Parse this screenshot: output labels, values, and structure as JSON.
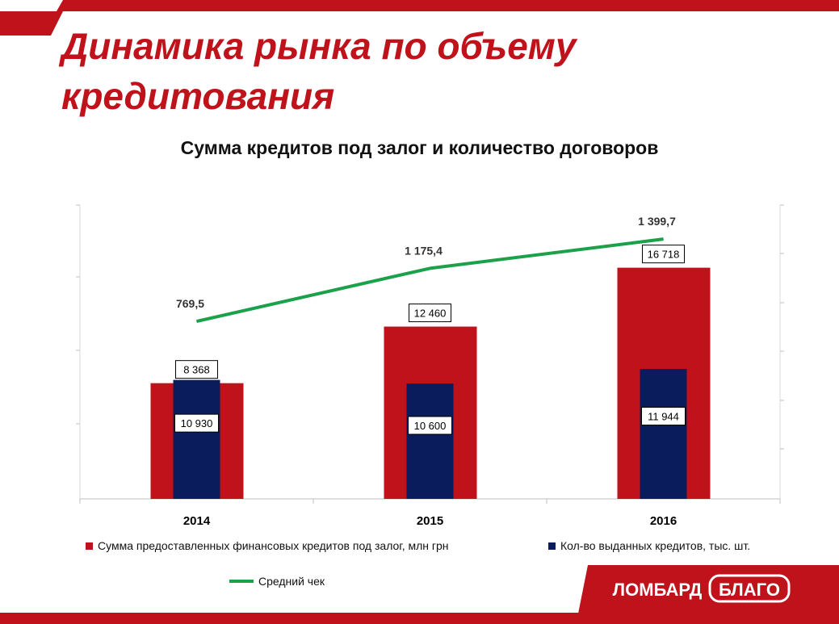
{
  "title": {
    "line1": "Динамика рынка по объему",
    "line2": "кредитования"
  },
  "colors": {
    "brand_red": "#c0121b",
    "navy": "#0b1c5c",
    "green": "#1aa14a"
  },
  "chart_data": {
    "type": "bar",
    "title": "Сумма кредитов под залог и количество договоров",
    "categories": [
      "2014",
      "2015",
      "2016"
    ],
    "series": [
      {
        "name": "Сумма предоставленных финансовых кредитов под залог, млн грн",
        "type": "bar",
        "color": "#c0121b",
        "values": [
          8368,
          12460,
          16718
        ],
        "labels": [
          "8 368",
          "12 460",
          "16 718"
        ]
      },
      {
        "name": "Кол-во выданных кредитов, тыс. шт.",
        "type": "bar",
        "color": "#0b1c5c",
        "values": [
          10930,
          10600,
          11944
        ],
        "labels": [
          "10 930",
          "10 600",
          "11 944"
        ]
      },
      {
        "name": "Средний чек",
        "type": "line",
        "color": "#1aa14a",
        "values": [
          769.5,
          1175.4,
          1399.7
        ],
        "labels": [
          "769,5",
          "1 175,4",
          "1 399,7"
        ]
      }
    ],
    "legend_position": "bottom",
    "grid": false
  },
  "logo": {
    "text_left": "ЛОМБАРД",
    "text_right": "БЛАГО"
  }
}
